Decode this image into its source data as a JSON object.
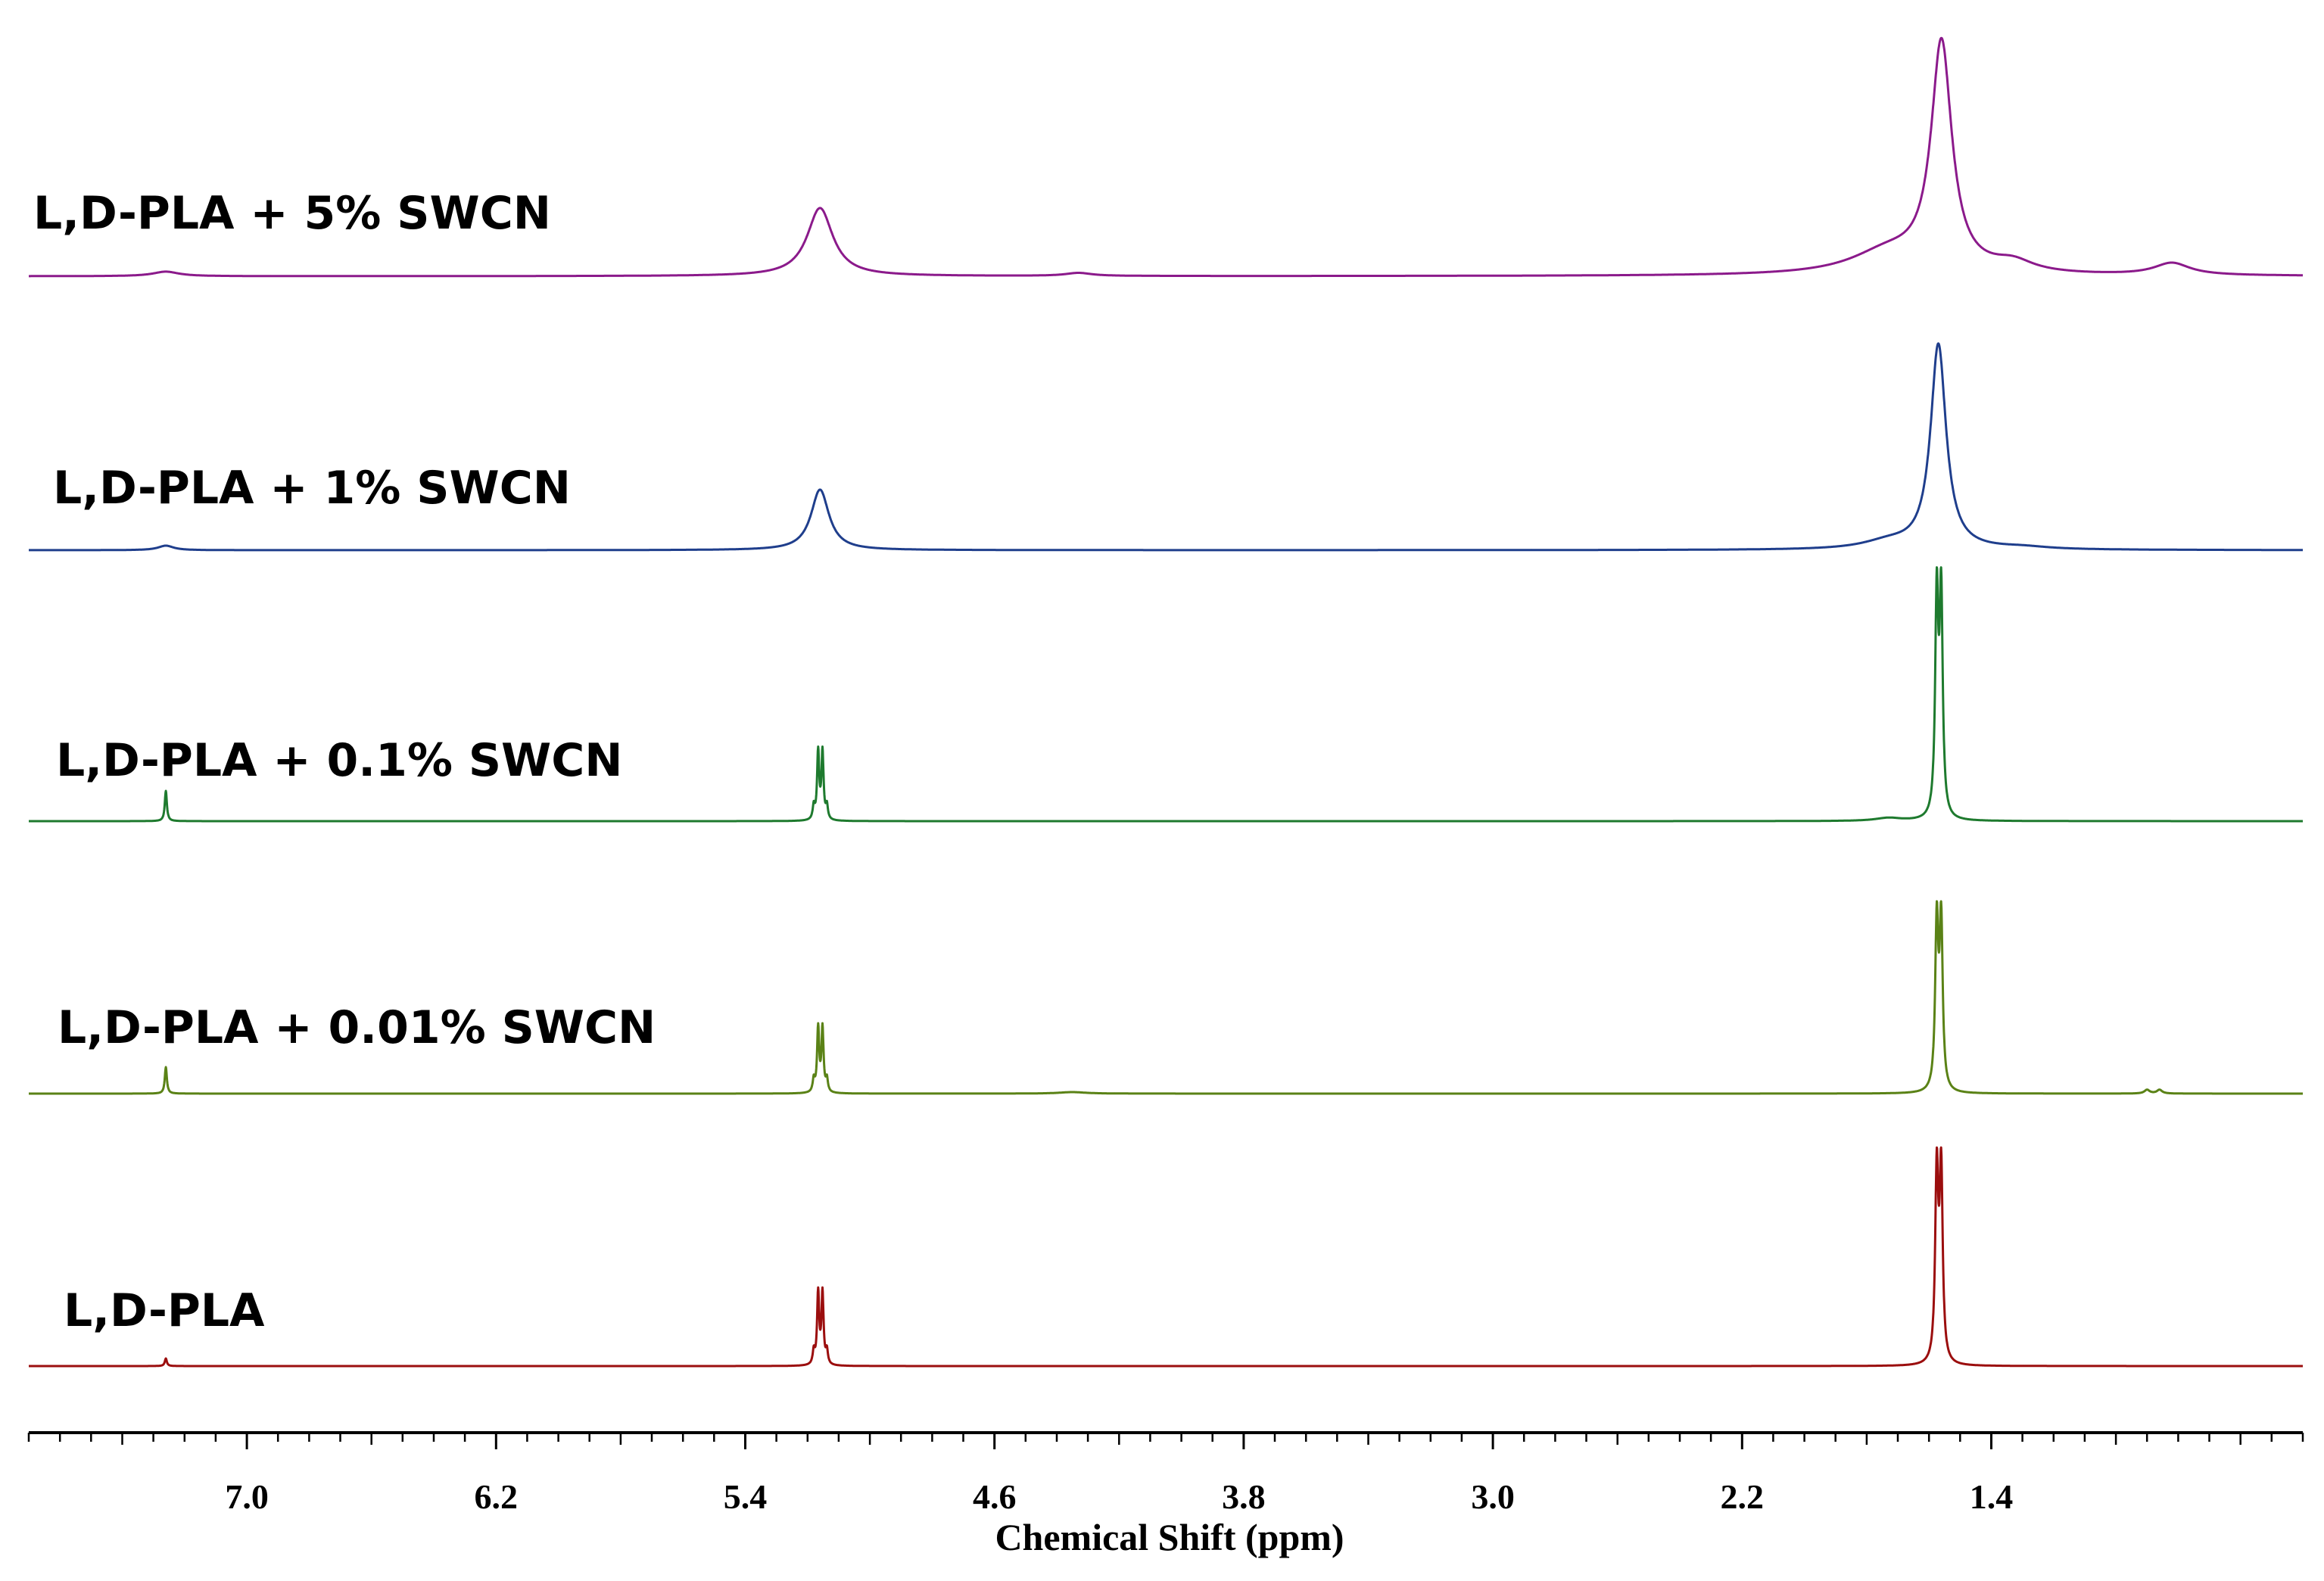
{
  "chart_data": {
    "type": "line",
    "title": "",
    "xlabel": "Chemical Shift (ppm)",
    "ylabel": "",
    "xlim": [
      7.7,
      0.4
    ],
    "x_reversed": true,
    "grid": false,
    "major_ticks": [
      7.0,
      6.2,
      5.4,
      4.6,
      3.8,
      3.0,
      2.2,
      1.4
    ],
    "tick_labels": [
      "7.0",
      "6.2",
      "5.4",
      "4.6",
      "3.8",
      "3.0",
      "2.2",
      "1.4"
    ],
    "minor_tick_step": 0.1,
    "series": [
      {
        "name": "L,D-PLA + 5% SWCN",
        "color": "#8B1A8B",
        "peaks": [
          {
            "shift": 7.26,
            "height": 0.06,
            "width": 0.05,
            "shape": "broad"
          },
          {
            "shift": 5.16,
            "height": 0.9,
            "width": 0.05,
            "shape": "broad"
          },
          {
            "shift": 4.33,
            "height": 0.04,
            "width": 0.05,
            "shape": "broad"
          },
          {
            "shift": 1.73,
            "height": 0.3,
            "width": 0.15,
            "shape": "broad"
          },
          {
            "shift": 1.56,
            "height": 3.0,
            "width": 0.04,
            "shape": "broad"
          },
          {
            "shift": 1.33,
            "height": 0.14,
            "width": 0.08,
            "shape": "broad"
          },
          {
            "shift": 0.82,
            "height": 0.16,
            "width": 0.07,
            "shape": "broad"
          }
        ]
      },
      {
        "name": "L,D-PLA + 1% SWCN",
        "color": "#1F3E8C",
        "peaks": [
          {
            "shift": 7.26,
            "height": 0.06,
            "width": 0.03,
            "shape": "broad"
          },
          {
            "shift": 5.16,
            "height": 0.8,
            "width": 0.035,
            "shape": "broad"
          },
          {
            "shift": 1.73,
            "height": 0.1,
            "width": 0.1,
            "shape": "broad"
          },
          {
            "shift": 1.57,
            "height": 2.7,
            "width": 0.03,
            "shape": "broad"
          },
          {
            "shift": 1.3,
            "height": 0.03,
            "width": 0.1,
            "shape": "broad"
          }
        ]
      },
      {
        "name": "L,D-PLA + 0.1% SWCN",
        "color": "#1E7A2E",
        "peaks": [
          {
            "shift": 7.26,
            "height": 0.4,
            "width": 0.004,
            "shape": "sharp"
          },
          {
            "shift": 5.18,
            "height": 0.18,
            "width": 0.004,
            "shape": "sharp"
          },
          {
            "shift": 5.166,
            "height": 0.9,
            "width": 0.004,
            "shape": "sharp"
          },
          {
            "shift": 5.152,
            "height": 0.9,
            "width": 0.004,
            "shape": "sharp"
          },
          {
            "shift": 5.138,
            "height": 0.18,
            "width": 0.004,
            "shape": "sharp"
          },
          {
            "shift": 1.575,
            "height": 2.9,
            "width": 0.006,
            "shape": "sharp"
          },
          {
            "shift": 1.561,
            "height": 2.9,
            "width": 0.006,
            "shape": "sharp"
          },
          {
            "shift": 1.73,
            "height": 0.04,
            "width": 0.05,
            "shape": "broad"
          }
        ]
      },
      {
        "name": "L,D-PLA + 0.01% SWCN",
        "color": "#5A8216",
        "peaks": [
          {
            "shift": 7.26,
            "height": 0.35,
            "width": 0.004,
            "shape": "sharp"
          },
          {
            "shift": 5.18,
            "height": 0.17,
            "width": 0.004,
            "shape": "sharp"
          },
          {
            "shift": 5.166,
            "height": 0.85,
            "width": 0.004,
            "shape": "sharp"
          },
          {
            "shift": 5.152,
            "height": 0.85,
            "width": 0.004,
            "shape": "sharp"
          },
          {
            "shift": 5.138,
            "height": 0.17,
            "width": 0.004,
            "shape": "sharp"
          },
          {
            "shift": 1.575,
            "height": 2.2,
            "width": 0.006,
            "shape": "sharp"
          },
          {
            "shift": 1.561,
            "height": 2.2,
            "width": 0.006,
            "shape": "sharp"
          },
          {
            "shift": 4.35,
            "height": 0.02,
            "width": 0.05,
            "shape": "broad"
          },
          {
            "shift": 0.9,
            "height": 0.05,
            "width": 0.01,
            "shape": "broad"
          },
          {
            "shift": 0.86,
            "height": 0.05,
            "width": 0.01,
            "shape": "broad"
          }
        ]
      },
      {
        "name": "L,D-PLA",
        "color": "#9B0E0E",
        "peaks": [
          {
            "shift": 7.26,
            "height": 0.1,
            "width": 0.004,
            "shape": "sharp"
          },
          {
            "shift": 5.18,
            "height": 0.18,
            "width": 0.004,
            "shape": "sharp"
          },
          {
            "shift": 5.166,
            "height": 0.95,
            "width": 0.004,
            "shape": "sharp"
          },
          {
            "shift": 5.152,
            "height": 0.95,
            "width": 0.004,
            "shape": "sharp"
          },
          {
            "shift": 5.138,
            "height": 0.18,
            "width": 0.004,
            "shape": "sharp"
          },
          {
            "shift": 1.575,
            "height": 2.5,
            "width": 0.006,
            "shape": "sharp"
          },
          {
            "shift": 1.561,
            "height": 2.5,
            "width": 0.006,
            "shape": "sharp"
          }
        ]
      }
    ]
  }
}
